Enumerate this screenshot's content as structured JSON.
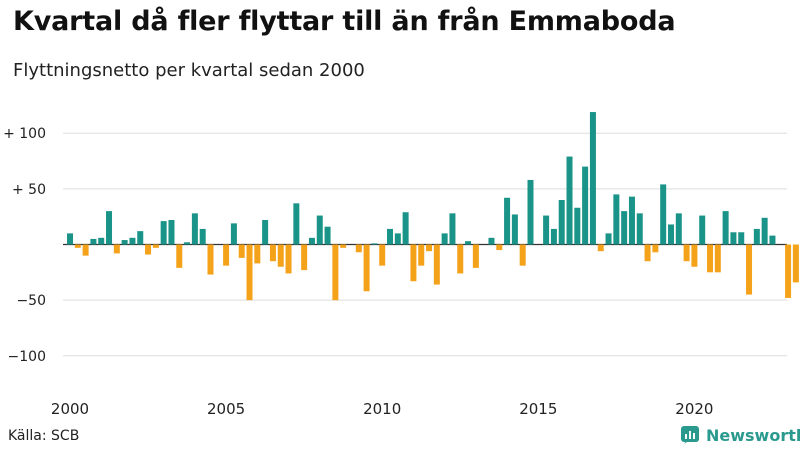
{
  "title": "Kvartal då fler flyttar till än från Emmaboda",
  "subtitle": "Flyttningsnetto per kvartal sedan 2000",
  "source": "Källa: SCB",
  "brand": {
    "name": "Newsworthy",
    "icon": "newsworthy-logo-icon",
    "color": "#2a9a8e"
  },
  "colors": {
    "positive": "#1a9488",
    "negative": "#f5a21b",
    "grid": "#dddddd",
    "zero": "#333333"
  },
  "chart_data": {
    "type": "bar",
    "title": "Kvartal då fler flyttar till än från Emmaboda",
    "subtitle": "Flyttningsnetto per kvartal sedan 2000",
    "xlabel": "",
    "ylabel": "",
    "ylim": [
      -120,
      120
    ],
    "y_ticks": [
      {
        "value": 100,
        "label": "+ 100"
      },
      {
        "value": 50,
        "label": "+  50"
      },
      {
        "value": 0,
        "label": "0"
      },
      {
        "value": -50,
        "label": "−50"
      },
      {
        "value": -100,
        "label": "−100"
      }
    ],
    "x_ticks": [
      {
        "year": 2000,
        "label": "2000"
      },
      {
        "year": 2005,
        "label": "2005"
      },
      {
        "year": 2010,
        "label": "2010"
      },
      {
        "year": 2015,
        "label": "2015"
      },
      {
        "year": 2020,
        "label": "2020"
      }
    ],
    "grid": true,
    "start": "2000-Q1",
    "values": [
      10,
      -3,
      -10,
      5,
      6,
      30,
      -8,
      4,
      6,
      12,
      -9,
      -3,
      21,
      22,
      -21,
      2,
      28,
      14,
      -27,
      0,
      -19,
      19,
      -12,
      -50,
      -17,
      22,
      -15,
      -20,
      -26,
      37,
      -23,
      6,
      26,
      16,
      -50,
      -3,
      0,
      -7,
      -42,
      1,
      -19,
      14,
      10,
      29,
      -33,
      -19,
      -6,
      -36,
      10,
      28,
      -26,
      3,
      -21,
      0,
      6,
      -5,
      42,
      27,
      -19,
      58,
      0,
      26,
      14,
      40,
      79,
      33,
      70,
      119,
      -6,
      10,
      45,
      30,
      43,
      28,
      -15,
      -7,
      54,
      18,
      28,
      -15,
      -20,
      26,
      -25,
      -25,
      30,
      11,
      11,
      -45,
      14,
      24,
      8,
      0,
      -48,
      -34
    ]
  }
}
